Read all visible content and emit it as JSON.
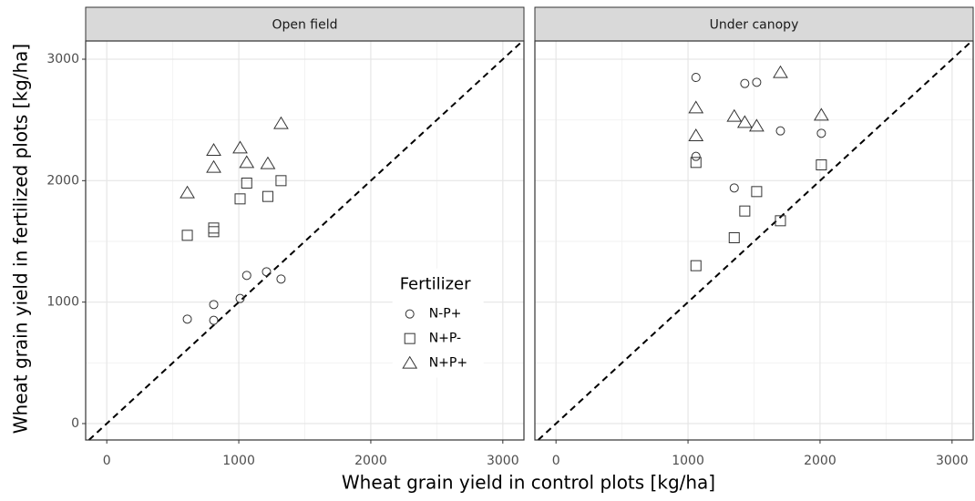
{
  "chart_data": [
    {
      "type": "scatter",
      "title": "Open field",
      "xlabel": "Wheat grain yield in control plots [kg/ha]",
      "ylabel": "Wheat grain yield in fertilized plots [kg/ha]",
      "legend_title": "Fertilizer",
      "legend": "inside-right",
      "xlim": [
        -160,
        3160
      ],
      "ylim": [
        -135,
        3150
      ],
      "xticks": [
        0,
        1000,
        2000,
        3000
      ],
      "yticks": [
        0,
        1000,
        2000,
        3000
      ],
      "grid": true,
      "identity_line": true,
      "series": [
        {
          "name": "N-P+",
          "shape": "circle",
          "color": "#333333",
          "x": [
            610,
            810,
            810,
            1010,
            1060,
            1210,
            1320
          ],
          "values": [
            860,
            980,
            850,
            1030,
            1220,
            1250,
            1190
          ]
        },
        {
          "name": "N+P-",
          "shape": "square",
          "color": "#333333",
          "x": [
            610,
            810,
            810,
            1010,
            1060,
            1220,
            1320
          ],
          "values": [
            1550,
            1580,
            1610,
            1850,
            1980,
            1870,
            2000
          ]
        },
        {
          "name": "N+P+",
          "shape": "triangle",
          "color": "#333333",
          "x": [
            610,
            810,
            810,
            1010,
            1060,
            1220,
            1320
          ],
          "values": [
            1900,
            2250,
            2110,
            2270,
            2150,
            2140,
            2470
          ]
        }
      ]
    },
    {
      "type": "scatter",
      "title": "Under canopy",
      "xlim": [
        -160,
        3160
      ],
      "ylim": [
        -135,
        3150
      ],
      "xticks": [
        0,
        1000,
        2000,
        3000
      ],
      "grid": true,
      "identity_line": true,
      "series": [
        {
          "shape": "circle",
          "color": "#333333",
          "x": [
            1060,
            1060,
            1350,
            1430,
            1520,
            1700,
            2010
          ],
          "values": [
            2850,
            2200,
            1940,
            2800,
            2810,
            2410,
            2390
          ]
        },
        {
          "shape": "square",
          "color": "#333333",
          "x": [
            1060,
            1060,
            1350,
            1430,
            1520,
            1700,
            2010
          ],
          "values": [
            1300,
            2150,
            1530,
            1750,
            1910,
            1670,
            2130
          ]
        },
        {
          "shape": "triangle",
          "color": "#333333",
          "x": [
            1060,
            1060,
            1350,
            1430,
            1520,
            1700,
            2010
          ],
          "values": [
            2600,
            2370,
            2530,
            2480,
            2450,
            2890,
            2540
          ]
        }
      ]
    }
  ]
}
